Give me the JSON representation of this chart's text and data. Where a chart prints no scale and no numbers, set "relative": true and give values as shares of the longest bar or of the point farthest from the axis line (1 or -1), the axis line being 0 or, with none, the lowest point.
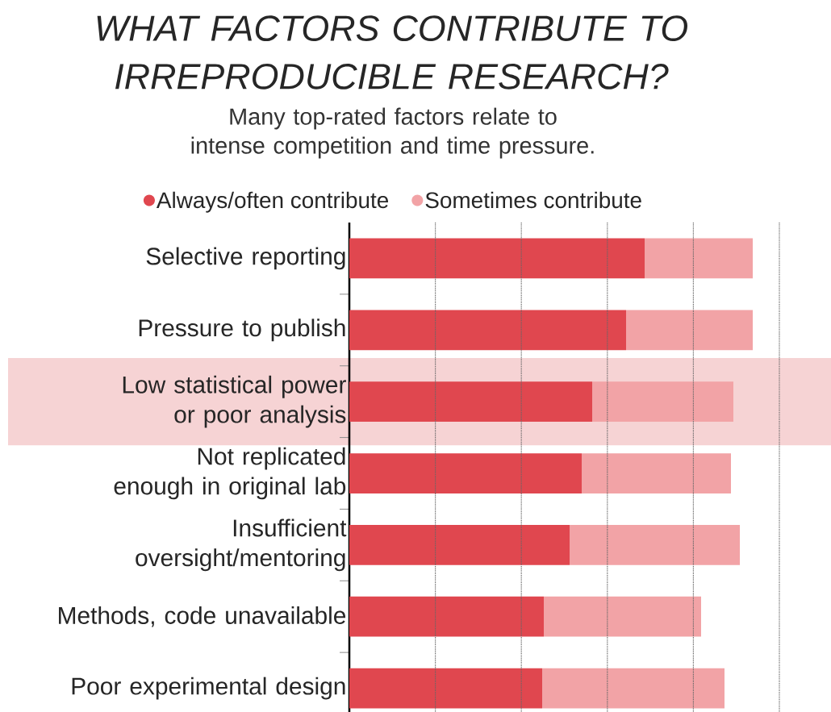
{
  "chart_data": {
    "type": "bar",
    "orientation": "horizontal",
    "stacked": true,
    "relative": true,
    "title": "WHAT FACTORS CONTRIBUTE TO IRREPRODUCIBLE RESEARCH?",
    "subtitle": "Many top-rated factors relate to intense competition and time pressure.",
    "categories": [
      "Selective reporting",
      "Pressure to publish",
      "Low statistical power or poor analysis",
      "Not replicated enough in original lab",
      "Insufficient oversight/mentoring",
      "Methods, code unavailable",
      "Poor experimental design"
    ],
    "series": [
      {
        "name": "Always/often contribute",
        "color": "#e0474f",
        "values": [
          0.732,
          0.686,
          0.602,
          0.576,
          0.546,
          0.482,
          0.478
        ]
      },
      {
        "name": "Sometimes contribute",
        "color": "#f2a3a6",
        "values": [
          0.268,
          0.314,
          0.35,
          0.37,
          0.422,
          0.39,
          0.452
        ]
      }
    ],
    "bands": [
      {
        "axis": "y",
        "from": "Low statistical power or poor analysis",
        "to": "Low statistical power or poor analysis",
        "color": "#f6d3d4"
      }
    ],
    "grid": "x",
    "legend": "top",
    "marker": "circle"
  }
}
